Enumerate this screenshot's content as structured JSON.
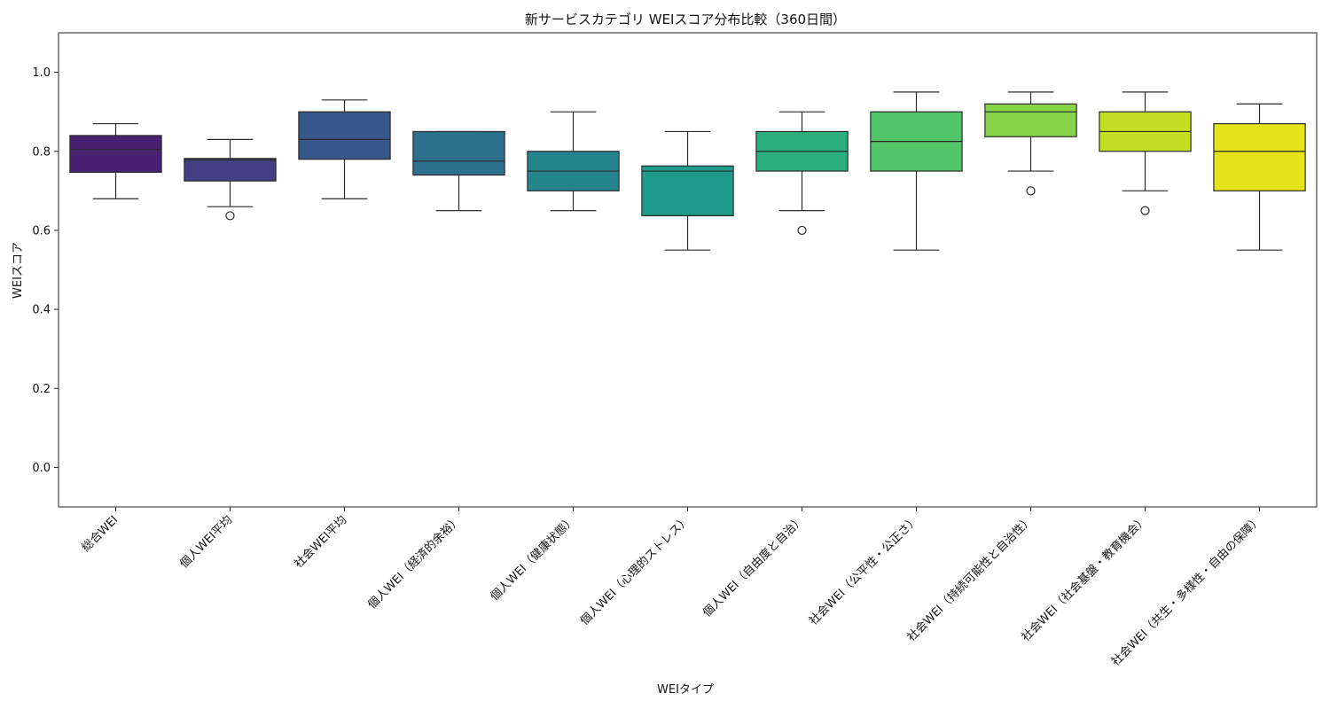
{
  "chart_data": {
    "type": "box",
    "title": "新サービスカテゴリ WEIスコア分布比較（360日間）",
    "xlabel": "WEIタイプ",
    "ylabel": "WEIスコア",
    "ylim": [
      -0.1,
      1.1
    ],
    "yticks": [
      0.0,
      0.2,
      0.4,
      0.6,
      0.8,
      1.0
    ],
    "grid": false,
    "legend": "none",
    "categories": [
      "総合WEI",
      "個人WEI平均",
      "社会WEI平均",
      "個人WEI（経済的余裕）",
      "個人WEI（健康状態）",
      "個人WEI（心理的ストレス）",
      "個人WEI（自由度と自治）",
      "社会WEI（公平性・公正さ）",
      "社会WEI（持続可能性と自治性）",
      "社会WEI（社会基盤・教育機会）",
      "社会WEI（共生・多様性・自由の保障）"
    ],
    "boxes": [
      {
        "whisker_low": 0.68,
        "q1": 0.747,
        "median": 0.805,
        "q3": 0.84,
        "whisker_high": 0.87,
        "outliers": []
      },
      {
        "whisker_low": 0.66,
        "q1": 0.725,
        "median": 0.778,
        "q3": 0.782,
        "whisker_high": 0.83,
        "outliers": [
          0.637
        ]
      },
      {
        "whisker_low": 0.68,
        "q1": 0.78,
        "median": 0.83,
        "q3": 0.9,
        "whisker_high": 0.93,
        "outliers": []
      },
      {
        "whisker_low": 0.65,
        "q1": 0.74,
        "median": 0.775,
        "q3": 0.85,
        "whisker_high": 0.85,
        "outliers": []
      },
      {
        "whisker_low": 0.65,
        "q1": 0.7,
        "median": 0.75,
        "q3": 0.8,
        "whisker_high": 0.9,
        "outliers": []
      },
      {
        "whisker_low": 0.55,
        "q1": 0.637,
        "median": 0.75,
        "q3": 0.763,
        "whisker_high": 0.85,
        "outliers": []
      },
      {
        "whisker_low": 0.65,
        "q1": 0.75,
        "median": 0.8,
        "q3": 0.85,
        "whisker_high": 0.9,
        "outliers": [
          0.6
        ]
      },
      {
        "whisker_low": 0.55,
        "q1": 0.75,
        "median": 0.825,
        "q3": 0.9,
        "whisker_high": 0.95,
        "outliers": []
      },
      {
        "whisker_low": 0.75,
        "q1": 0.837,
        "median": 0.9,
        "q3": 0.92,
        "whisker_high": 0.95,
        "outliers": [
          0.7
        ]
      },
      {
        "whisker_low": 0.7,
        "q1": 0.8,
        "median": 0.85,
        "q3": 0.9,
        "whisker_high": 0.95,
        "outliers": [
          0.65
        ]
      },
      {
        "whisker_low": 0.55,
        "q1": 0.7,
        "median": 0.8,
        "q3": 0.87,
        "whisker_high": 0.92,
        "outliers": []
      }
    ],
    "colors": [
      "#482173",
      "#433e85",
      "#38588c",
      "#2d708e",
      "#25858e",
      "#1e9b8a",
      "#2ab07f",
      "#52c569",
      "#86d549",
      "#c2df23",
      "#e5e419"
    ]
  }
}
